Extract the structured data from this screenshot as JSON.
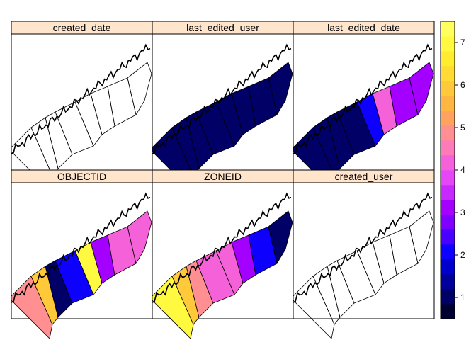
{
  "panels": [
    {
      "title": "created_date",
      "mode": "empty",
      "zone_values": []
    },
    {
      "title": "last_edited_user",
      "mode": "fill",
      "zone_values": [
        1,
        1,
        1,
        1,
        1,
        1,
        1,
        1
      ]
    },
    {
      "title": "last_edited_date",
      "mode": "fill",
      "zone_values": [
        1,
        1,
        1,
        1,
        2,
        4,
        3,
        3
      ]
    },
    {
      "title": "OBJECTID",
      "mode": "fill",
      "zone_values": [
        5,
        6,
        1,
        2,
        7,
        3,
        4,
        4
      ]
    },
    {
      "title": "ZONEID",
      "mode": "fill",
      "zone_values": [
        7,
        6,
        5,
        4,
        4,
        3,
        2,
        1
      ]
    },
    {
      "title": "created_user",
      "mode": "empty",
      "zone_values": []
    }
  ],
  "colorkey": {
    "ticks": [
      "1",
      "2",
      "3",
      "4",
      "5",
      "6",
      "7"
    ],
    "range": [
      0.5,
      7.5
    ],
    "colors": [
      "#000033",
      "#000066",
      "#00009A",
      "#0000CE",
      "#0D00FF",
      "#4A00FF",
      "#7F00FF",
      "#A300FF",
      "#C729FF",
      "#E547F6",
      "#F461D8",
      "#FF7AB8",
      "#FF8F91",
      "#FFA35F",
      "#FFB642",
      "#FFC93A",
      "#FFDB34",
      "#FFEC2E",
      "#FFFA40",
      "#FFFF60"
    ]
  },
  "colors": {
    "strip": "#FFE5CC",
    "border": "#000000",
    "background": "#FFFFFF"
  }
}
